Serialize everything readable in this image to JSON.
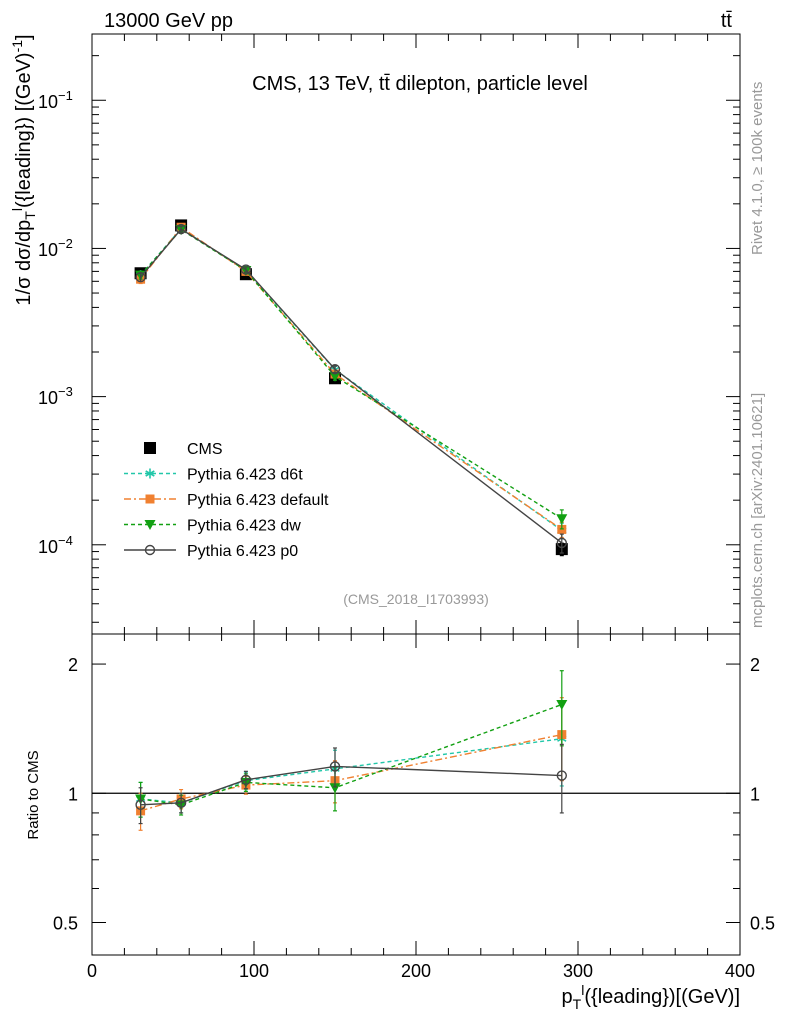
{
  "header": {
    "left": "13000 GeV pp",
    "right": "tt̄"
  },
  "side_labels": {
    "rivet": "Rivet 4.1.0, ≥ 100k events",
    "mcplots": "mcplots.cern.ch [arXiv:2401.10621]"
  },
  "chart_data": [
    {
      "type": "line",
      "panel": "main",
      "title": "CMS, 13 TeV, tt̄ dilepton, particle level",
      "ylabel": "1/σ dσ/dp_T^l({leading}) [(GeV)^-1]",
      "yscale": "log",
      "ylim": [
        2.5e-05,
        0.28
      ],
      "xlim": [
        0,
        400
      ],
      "y_tick_labels": [
        "10^-4",
        "10^-3",
        "10^-2",
        "10^-1"
      ],
      "annotation": "(CMS_2018_I1703993)",
      "x": [
        30,
        55,
        95,
        150,
        290
      ],
      "series": [
        {
          "name": "CMS",
          "color": "#000000",
          "marker": "square",
          "values": [
            0.0068,
            0.0143,
            0.0067,
            0.00133,
            9.35e-05
          ],
          "err": [
            0.0004,
            0.0007,
            0.0003,
            8e-05,
            9e-06
          ]
        },
        {
          "name": "Pythia 6.423 d6t",
          "color": "#22c7a9",
          "marker": "asterisk",
          "dash": "4,3",
          "values": [
            0.0066,
            0.0136,
            0.0071,
            0.00152,
            0.000125
          ],
          "err": [
            0.0004,
            0.0006,
            0.0003,
            8e-05,
            1.5e-05
          ]
        },
        {
          "name": "Pythia 6.423 default",
          "color": "#f08030",
          "marker": "square-small",
          "dash": "7,3,2,3",
          "values": [
            0.0062,
            0.0139,
            0.007,
            0.00142,
            0.000127
          ],
          "err": [
            0.0004,
            0.0006,
            0.0003,
            8e-05,
            1.5e-05
          ]
        },
        {
          "name": "Pythia 6.423 dw",
          "color": "#12a012",
          "marker": "triangle-down",
          "dash": "4,3",
          "values": [
            0.0066,
            0.0134,
            0.0071,
            0.00137,
            0.00015
          ],
          "err": [
            0.0004,
            0.0006,
            0.0003,
            8e-05,
            2.2e-05
          ]
        },
        {
          "name": "Pythia 6.423 p0",
          "color": "#444444",
          "marker": "circle-open",
          "dash": "",
          "values": [
            0.0064,
            0.0135,
            0.0072,
            0.00153,
            0.000103
          ],
          "err": [
            0.0004,
            0.0006,
            0.0003,
            8e-05,
            1.5e-05
          ]
        }
      ]
    },
    {
      "type": "line",
      "panel": "ratio",
      "ylabel": "Ratio to CMS",
      "xlabel": "p_T^l({leading})[(GeV)]",
      "yscale": "log",
      "ylim": [
        0.42,
        2.35
      ],
      "xlim": [
        0,
        400
      ],
      "x_tick_labels": [
        "0",
        "100",
        "200",
        "300",
        "400"
      ],
      "y_tick_labels": [
        "0.5",
        "1",
        "2"
      ],
      "reference": 1,
      "x": [
        30,
        55,
        95,
        150,
        290
      ],
      "series": [
        {
          "name": "Pythia 6.423 d6t",
          "values": [
            0.97,
            0.95,
            1.07,
            1.14,
            1.34
          ],
          "err": [
            0.09,
            0.05,
            0.05,
            0.12,
            0.3
          ]
        },
        {
          "name": "Pythia 6.423 default",
          "values": [
            0.91,
            0.97,
            1.045,
            1.07,
            1.37
          ],
          "err": [
            0.09,
            0.05,
            0.05,
            0.12,
            0.3
          ]
        },
        {
          "name": "Pythia 6.423 dw",
          "values": [
            0.97,
            0.94,
            1.06,
            1.03,
            1.61
          ],
          "err": [
            0.09,
            0.05,
            0.05,
            0.12,
            0.32
          ]
        },
        {
          "name": "Pythia 6.423 p0",
          "values": [
            0.94,
            0.95,
            1.075,
            1.155,
            1.1
          ],
          "err": [
            0.09,
            0.05,
            0.05,
            0.12,
            0.2
          ]
        }
      ]
    }
  ]
}
